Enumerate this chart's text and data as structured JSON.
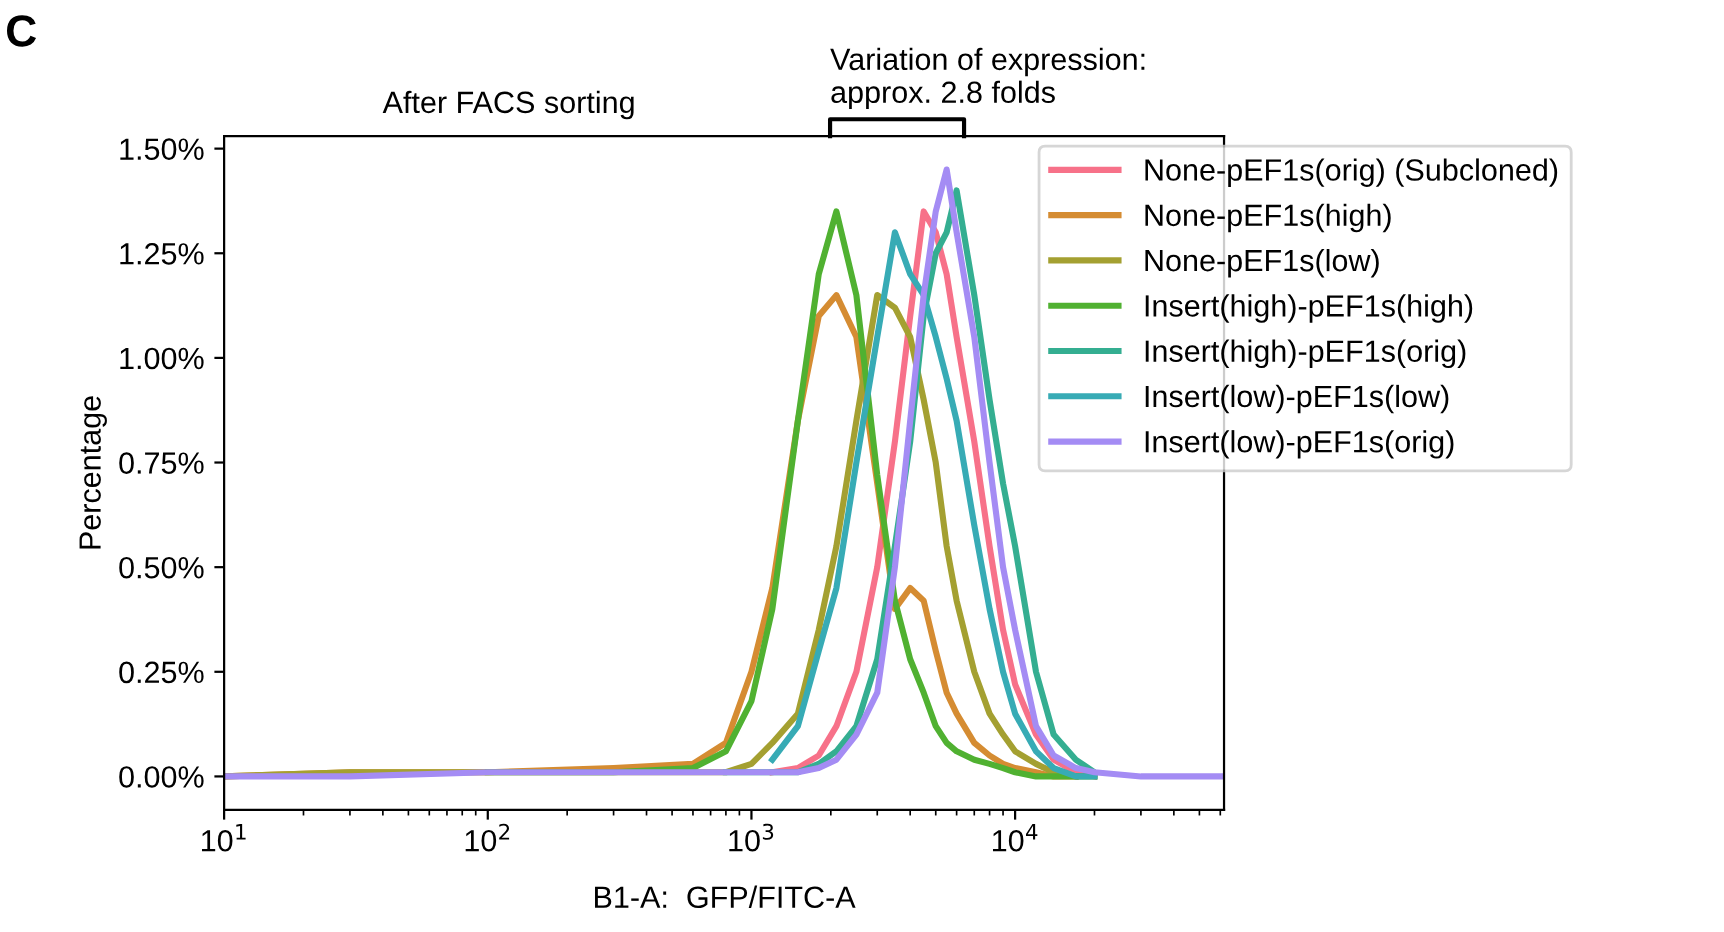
{
  "chart_data": {
    "type": "line",
    "xlabel": "B1-A:  GFP/FITC-A",
    "ylabel": "Percentage",
    "annotations": [
      "C",
      "After FACS sorting",
      "Variation of expression:\napprox. 2.8 folds"
    ],
    "log": "x",
    "grid": false,
    "legend": "top right",
    "marker": "none",
    "line_style": "solid",
    "xlim": [
      10,
      62000
    ],
    "ylim": [
      -0.08,
      1.53
    ],
    "xticks": [
      {
        "value": 10,
        "label": "10$^{1}$"
      },
      {
        "value": 100,
        "label": "10$^{2}$"
      },
      {
        "value": 1000,
        "label": "10$^{3}$"
      },
      {
        "value": 10000,
        "label": "10$^{4}$"
      }
    ],
    "yticks": [
      {
        "value": 0,
        "label": "0.00%"
      },
      {
        "value": 0.25,
        "label": "0.25%"
      },
      {
        "value": 0.5,
        "label": "0.50%"
      },
      {
        "value": 0.75,
        "label": "0.75%"
      },
      {
        "value": 1.0,
        "label": "1.00%"
      },
      {
        "value": 1.25,
        "label": "1.25%"
      },
      {
        "value": 1.5,
        "label": "1.50%"
      }
    ],
    "x": [
      10,
      30,
      100,
      300,
      600,
      800,
      1000,
      1200,
      1500,
      1800,
      2100,
      2500,
      3000,
      3500,
      4000,
      4500,
      5000,
      5500,
      6000,
      7000,
      8000,
      9000,
      10000,
      12000,
      14000,
      17000,
      20000,
      30000,
      62000
    ],
    "series": [
      {
        "name": "None-pEF1s(orig) (Subcloned)",
        "color": "#f77189",
        "values": [
          null,
          null,
          null,
          null,
          null,
          null,
          null,
          0.01,
          0.02,
          0.05,
          0.12,
          0.25,
          0.5,
          0.8,
          1.1,
          1.35,
          1.3,
          1.2,
          1.05,
          0.8,
          0.55,
          0.35,
          0.22,
          0.1,
          0.04,
          0.01,
          0,
          null,
          null
        ]
      },
      {
        "name": "None-pEF1s(high)",
        "color": "#d58c32",
        "values": [
          0,
          0.01,
          0.01,
          0.02,
          0.03,
          0.08,
          0.25,
          0.45,
          0.85,
          1.1,
          1.15,
          1.05,
          0.7,
          0.4,
          0.45,
          0.42,
          0.3,
          0.2,
          0.15,
          0.08,
          0.05,
          0.03,
          0.02,
          0.01,
          0,
          0,
          null,
          null,
          null
        ]
      },
      {
        "name": "None-pEF1s(low)",
        "color": "#a4a031",
        "values": [
          0,
          0.01,
          0.01,
          0.01,
          0.01,
          0.01,
          0.03,
          0.08,
          0.15,
          0.35,
          0.55,
          0.85,
          1.15,
          1.12,
          1.05,
          0.9,
          0.75,
          0.55,
          0.42,
          0.25,
          0.15,
          0.1,
          0.06,
          0.03,
          0.01,
          0,
          null,
          null,
          null
        ]
      },
      {
        "name": "Insert(high)-pEF1s(high)",
        "color": "#50b131",
        "values": [
          null,
          null,
          0.01,
          0.01,
          0.02,
          0.06,
          0.18,
          0.4,
          0.85,
          1.2,
          1.35,
          1.15,
          0.72,
          0.42,
          0.28,
          0.2,
          0.12,
          0.08,
          0.06,
          0.04,
          0.03,
          0.02,
          0.01,
          0,
          0,
          0,
          0,
          null,
          null
        ]
      },
      {
        "name": "Insert(high)-pEF1s(orig)",
        "color": "#34ae91",
        "values": [
          null,
          null,
          null,
          null,
          null,
          0.01,
          0.01,
          0.01,
          0.01,
          0.03,
          0.06,
          0.12,
          0.28,
          0.55,
          0.8,
          1.1,
          1.25,
          1.3,
          1.4,
          1.15,
          0.9,
          0.7,
          0.55,
          0.25,
          0.1,
          0.04,
          0.01,
          null,
          null
        ]
      },
      {
        "name": "Insert(low)-pEF1s(low)",
        "color": "#37abb5",
        "values": [
          null,
          null,
          null,
          null,
          null,
          null,
          null,
          0.04,
          0.12,
          0.3,
          0.45,
          0.75,
          1.05,
          1.3,
          1.2,
          1.15,
          1.05,
          0.95,
          0.85,
          0.6,
          0.4,
          0.25,
          0.15,
          0.06,
          0.02,
          0,
          0,
          null,
          null
        ]
      },
      {
        "name": "Insert(low)-pEF1s(orig)",
        "color": "#a48cf4",
        "values": [
          0,
          0,
          0.01,
          0.01,
          0.01,
          0.01,
          0.01,
          0.01,
          0.01,
          0.02,
          0.04,
          0.1,
          0.2,
          0.5,
          0.85,
          1.15,
          1.35,
          1.45,
          1.3,
          1.05,
          0.75,
          0.5,
          0.35,
          0.12,
          0.05,
          0.02,
          0.01,
          0,
          0
        ]
      }
    ]
  }
}
